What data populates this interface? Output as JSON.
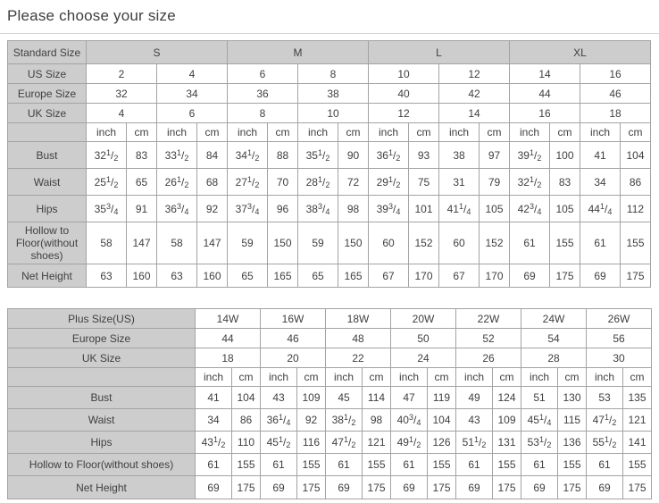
{
  "page_title": "Please choose your size",
  "colors": {
    "header_cell_bg": "#cdcdcd",
    "data_cell_bg": "#ffffff",
    "grid_border": "#a3a3a3",
    "text": "#404040",
    "title_rule": "#d6d6d6"
  },
  "chart_data": [
    {
      "type": "table",
      "name": "standard-size-table",
      "corner_label": "Standard Size",
      "size_groups": [
        "S",
        "M",
        "L",
        "XL"
      ],
      "unit_labels": [
        "inch",
        "cm"
      ],
      "size_rows": [
        {
          "label": "US Size",
          "values": [
            "2",
            "4",
            "6",
            "8",
            "10",
            "12",
            "14",
            "16"
          ]
        },
        {
          "label": "Europe Size",
          "values": [
            "32",
            "34",
            "36",
            "38",
            "40",
            "42",
            "44",
            "46"
          ]
        },
        {
          "label": "UK Size",
          "values": [
            "4",
            "6",
            "8",
            "10",
            "12",
            "14",
            "16",
            "18"
          ]
        }
      ],
      "measure_rows": [
        {
          "label": "Bust",
          "values": [
            "32 1/2",
            "83",
            "33 1/2",
            "84",
            "34 1/2",
            "88",
            "35 1/2",
            "90",
            "36 1/2",
            "93",
            "38",
            "97",
            "39 1/2",
            "100",
            "41",
            "104"
          ]
        },
        {
          "label": "Waist",
          "values": [
            "25 1/2",
            "65",
            "26 1/2",
            "68",
            "27 1/2",
            "70",
            "28 1/2",
            "72",
            "29 1/2",
            "75",
            "31",
            "79",
            "32 1/2",
            "83",
            "34",
            "86"
          ]
        },
        {
          "label": "Hips",
          "values": [
            "35 3/4",
            "91",
            "36 3/4",
            "92",
            "37 3/4",
            "96",
            "38 3/4",
            "98",
            "39 3/4",
            "101",
            "41 1/4",
            "105",
            "42 3/4",
            "105",
            "44 1/4",
            "112"
          ]
        },
        {
          "label": "Hollow to Floor(without shoes)",
          "values": [
            "58",
            "147",
            "58",
            "147",
            "59",
            "150",
            "59",
            "150",
            "60",
            "152",
            "60",
            "152",
            "61",
            "155",
            "61",
            "155"
          ]
        },
        {
          "label": "Net Height",
          "values": [
            "63",
            "160",
            "63",
            "160",
            "65",
            "165",
            "65",
            "165",
            "67",
            "170",
            "67",
            "170",
            "69",
            "175",
            "69",
            "175"
          ]
        }
      ]
    },
    {
      "type": "table",
      "name": "plus-size-table",
      "unit_labels": [
        "inch",
        "cm"
      ],
      "size_rows": [
        {
          "label": "Plus Size(US)",
          "values": [
            "14W",
            "16W",
            "18W",
            "20W",
            "22W",
            "24W",
            "26W"
          ]
        },
        {
          "label": "Europe Size",
          "values": [
            "44",
            "46",
            "48",
            "50",
            "52",
            "54",
            "56"
          ]
        },
        {
          "label": "UK Size",
          "values": [
            "18",
            "20",
            "22",
            "24",
            "26",
            "28",
            "30"
          ]
        }
      ],
      "measure_rows": [
        {
          "label": "Bust",
          "values": [
            "41",
            "104",
            "43",
            "109",
            "45",
            "114",
            "47",
            "119",
            "49",
            "124",
            "51",
            "130",
            "53",
            "135"
          ]
        },
        {
          "label": "Waist",
          "values": [
            "34",
            "86",
            "36 1/4",
            "92",
            "38 1/2",
            "98",
            "40 3/4",
            "104",
            "43",
            "109",
            "45 1/4",
            "115",
            "47 1/2",
            "121"
          ]
        },
        {
          "label": "Hips",
          "values": [
            "43 1/2",
            "110",
            "45 1/2",
            "116",
            "47 1/2",
            "121",
            "49 1/2",
            "126",
            "51 1/2",
            "131",
            "53 1/2",
            "136",
            "55 1/2",
            "141"
          ]
        },
        {
          "label": "Hollow to Floor(without shoes)",
          "values": [
            "61",
            "155",
            "61",
            "155",
            "61",
            "155",
            "61",
            "155",
            "61",
            "155",
            "61",
            "155",
            "61",
            "155"
          ]
        },
        {
          "label": "Net Height",
          "values": [
            "69",
            "175",
            "69",
            "175",
            "69",
            "175",
            "69",
            "175",
            "69",
            "175",
            "69",
            "175",
            "69",
            "175"
          ]
        }
      ]
    }
  ]
}
